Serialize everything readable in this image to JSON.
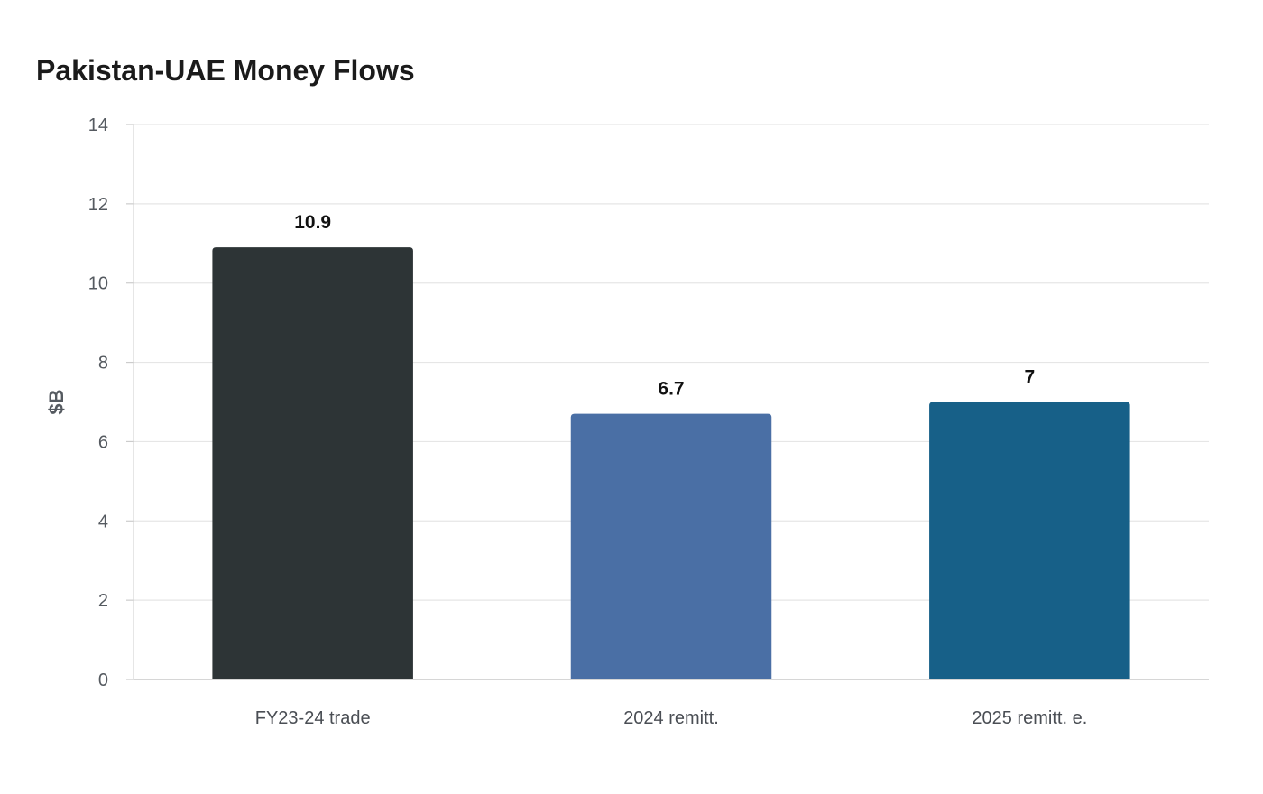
{
  "chart_data": {
    "type": "bar",
    "title": "Pakistan-UAE Money Flows",
    "xlabel": "",
    "ylabel": "$B",
    "categories": [
      "FY23-24 trade",
      "2024 remitt.",
      "2025 remitt. e."
    ],
    "values": [
      10.9,
      6.7,
      7
    ],
    "value_labels": [
      "10.9",
      "6.7",
      "7"
    ],
    "colors": [
      "#2d3436",
      "#4a6fa5",
      "#176088"
    ],
    "ylim": [
      0,
      14
    ],
    "yticks": [
      0,
      2,
      4,
      6,
      8,
      10,
      12,
      14
    ],
    "grid": true,
    "legend": "none"
  }
}
